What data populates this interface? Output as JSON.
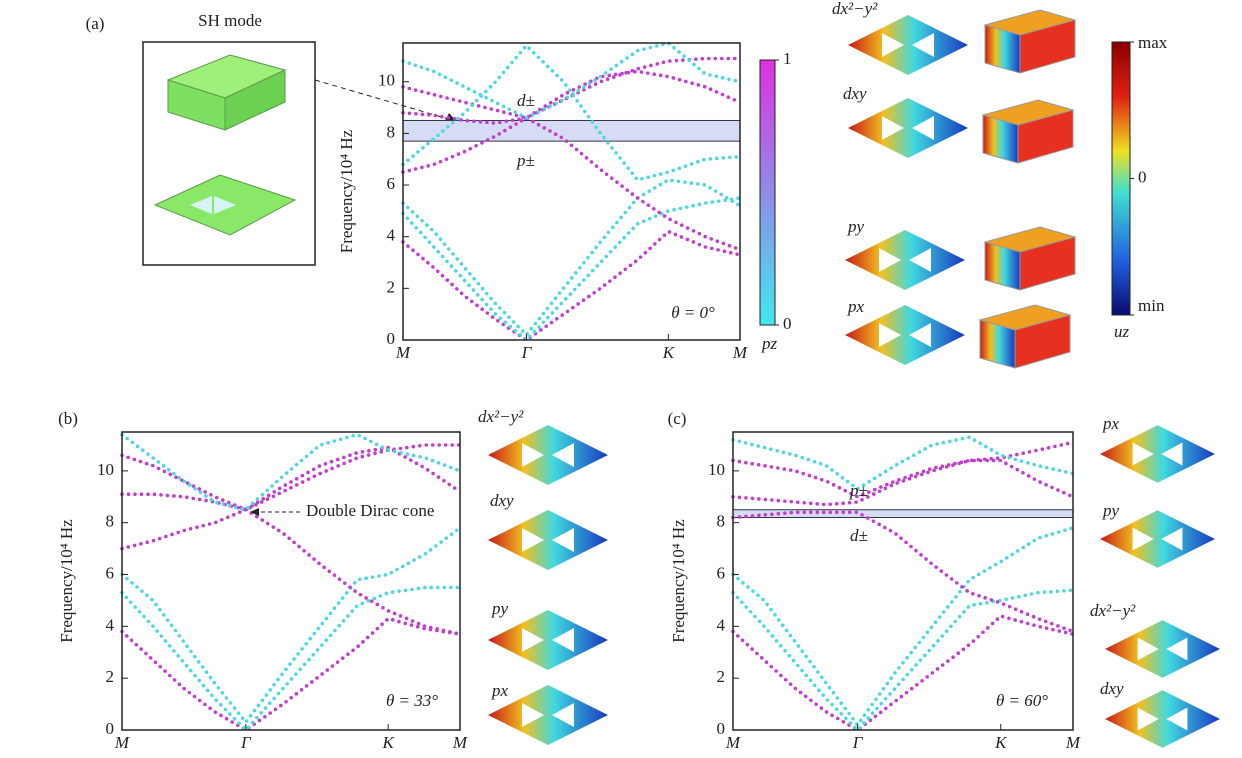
{
  "chart_data": [
    {
      "type": "line",
      "panel": "(a)",
      "ylabel": "Frequency/10⁴ Hz",
      "theta": "θ = 0°",
      "x": [
        0,
        0.25,
        0.5,
        0.75,
        1,
        1.3,
        1.6,
        1.9,
        2.15,
        2.45,
        2.73
      ],
      "xlim": [
        0,
        2.73
      ],
      "xticks": [
        {
          "value": 0,
          "label": "M"
        },
        {
          "value": 1,
          "label": "Γ"
        },
        {
          "value": 2.15,
          "label": "K"
        },
        {
          "value": 2.73,
          "label": "M"
        }
      ],
      "ylim": [
        0,
        11.5
      ],
      "yticks": [
        0,
        2,
        4,
        6,
        8,
        10
      ],
      "band": [
        7.7,
        8.5
      ],
      "band_color": "#d6dcf4",
      "annotations": [
        {
          "text": "d±",
          "color": "#333333"
        },
        {
          "text": "p±",
          "color": "#d03030"
        }
      ],
      "mode_labels": [
        "dx²−y²",
        "dxy",
        "py",
        "px"
      ],
      "colorbar": {
        "label": "pz",
        "lim": [
          0,
          1
        ],
        "ticks": [
          0,
          1
        ],
        "colors": [
          "#40e8f0",
          "#e030e0"
        ]
      },
      "series": [
        {
          "color": "#c23ccf",
          "values": [
            3.8,
            2.8,
            1.7,
            0.8,
            0,
            1.0,
            2.0,
            3.1,
            4.2,
            3.6,
            3.3
          ]
        },
        {
          "color": "#4dd8e0",
          "values": [
            4.9,
            3.6,
            2.3,
            1.0,
            0,
            1.5,
            3.0,
            4.5,
            5.0,
            5.3,
            5.5
          ]
        },
        {
          "color": "#4dd8e0",
          "values": [
            5.3,
            4.2,
            2.8,
            1.4,
            0.2,
            2.0,
            3.8,
            5.5,
            6.2,
            6.0,
            5.2
          ]
        },
        {
          "color": "#c23ccf",
          "values": [
            6.5,
            6.8,
            7.3,
            7.9,
            8.6,
            7.8,
            6.6,
            5.5,
            4.7,
            4.0,
            3.5
          ]
        },
        {
          "color": "#c23ccf",
          "values": [
            8.8,
            8.7,
            8.5,
            8.4,
            8.6,
            9.3,
            10.0,
            10.5,
            10.8,
            10.9,
            10.9
          ]
        },
        {
          "color": "#c23ccf",
          "values": [
            9.8,
            9.5,
            9.2,
            8.9,
            8.6,
            9.5,
            10.2,
            10.4,
            10.2,
            9.8,
            9.2
          ]
        },
        {
          "color": "#4dd8e0",
          "values": [
            6.8,
            7.8,
            8.8,
            10.0,
            11.4,
            10.0,
            8.0,
            6.2,
            6.5,
            7.0,
            7.1
          ]
        },
        {
          "color": "#4dd8e0",
          "values": [
            10.8,
            10.4,
            9.8,
            9.2,
            8.6,
            9.3,
            10.2,
            11.2,
            11.5,
            10.3,
            10.0
          ]
        }
      ]
    },
    {
      "type": "line",
      "panel": "(b)",
      "ylabel": "Frequency/10⁴ Hz",
      "theta": "θ = 33°",
      "x": [
        0,
        0.25,
        0.5,
        0.75,
        1,
        1.3,
        1.6,
        1.9,
        2.15,
        2.45,
        2.73
      ],
      "xlim": [
        0,
        2.73
      ],
      "xticks": [
        {
          "value": 0,
          "label": "M"
        },
        {
          "value": 1,
          "label": "Γ"
        },
        {
          "value": 2.15,
          "label": "K"
        },
        {
          "value": 2.73,
          "label": "M"
        }
      ],
      "ylim": [
        0,
        11.5
      ],
      "yticks": [
        0,
        2,
        4,
        6,
        8,
        10
      ],
      "annotations": [
        {
          "text": "Double Dirac cone",
          "color": "#222222"
        }
      ],
      "mode_labels": [
        "dx²−y²",
        "dxy",
        "py",
        "px"
      ],
      "series": [
        {
          "color": "#c23ccf",
          "values": [
            3.8,
            2.7,
            1.6,
            0.7,
            0,
            1.0,
            2.1,
            3.2,
            4.3,
            3.9,
            3.7
          ]
        },
        {
          "color": "#4dd8e0",
          "values": [
            5.3,
            4.0,
            2.6,
            1.2,
            0,
            1.6,
            3.2,
            4.8,
            5.3,
            5.5,
            5.5
          ]
        },
        {
          "color": "#4dd8e0",
          "values": [
            6.0,
            5.0,
            3.4,
            1.8,
            0.3,
            2.2,
            4.0,
            5.8,
            6.0,
            6.8,
            7.8
          ]
        },
        {
          "color": "#c23ccf",
          "values": [
            7.0,
            7.3,
            7.7,
            8.0,
            8.5,
            7.6,
            6.4,
            5.3,
            4.6,
            4.0,
            3.7
          ]
        },
        {
          "color": "#c23ccf",
          "values": [
            9.1,
            9.1,
            9.0,
            8.8,
            8.5,
            9.2,
            9.9,
            10.5,
            10.8,
            11.0,
            11.0
          ]
        },
        {
          "color": "#c23ccf",
          "values": [
            10.6,
            10.2,
            9.6,
            9.0,
            8.5,
            9.4,
            10.2,
            10.7,
            10.9,
            10.1,
            9.2
          ]
        },
        {
          "color": "#4dd8e0",
          "values": [
            11.4,
            10.5,
            9.6,
            8.8,
            8.5,
            9.8,
            11.0,
            11.4,
            10.8,
            10.5,
            10.0
          ]
        }
      ]
    },
    {
      "type": "line",
      "panel": "(c)",
      "ylabel": "Frequency/10⁴ Hz",
      "theta": "θ = 60°",
      "x": [
        0,
        0.25,
        0.5,
        0.75,
        1,
        1.3,
        1.6,
        1.9,
        2.15,
        2.45,
        2.73
      ],
      "xlim": [
        0,
        2.73
      ],
      "xticks": [
        {
          "value": 0,
          "label": "M"
        },
        {
          "value": 1,
          "label": "Γ"
        },
        {
          "value": 2.15,
          "label": "K"
        },
        {
          "value": 2.73,
          "label": "M"
        }
      ],
      "ylim": [
        0,
        11.5
      ],
      "yticks": [
        0,
        2,
        4,
        6,
        8,
        10
      ],
      "band": [
        8.2,
        8.5
      ],
      "band_color": "#d6dcf4",
      "annotations": [
        {
          "text": "p±",
          "color": "#d03030"
        },
        {
          "text": "d±",
          "color": "#333333"
        }
      ],
      "mode_labels": [
        "px",
        "py",
        "dx²−y²",
        "dxy"
      ],
      "series": [
        {
          "color": "#c23ccf",
          "values": [
            3.8,
            2.7,
            1.6,
            0.7,
            0,
            1.1,
            2.2,
            3.3,
            4.4,
            4.0,
            3.7
          ]
        },
        {
          "color": "#4dd8e0",
          "values": [
            5.3,
            4.0,
            2.6,
            1.2,
            0,
            1.6,
            3.2,
            4.8,
            5.0,
            5.3,
            5.4
          ]
        },
        {
          "color": "#4dd8e0",
          "values": [
            6.0,
            5.0,
            3.4,
            1.8,
            0.2,
            2.2,
            4.0,
            5.8,
            6.5,
            7.4,
            7.8
          ]
        },
        {
          "color": "#c23ccf",
          "values": [
            8.2,
            8.3,
            8.4,
            8.4,
            8.4,
            7.6,
            6.4,
            5.3,
            4.9,
            4.3,
            3.8
          ]
        },
        {
          "color": "#c23ccf",
          "values": [
            9.0,
            8.9,
            8.8,
            8.7,
            8.8,
            9.5,
            10.0,
            10.4,
            10.5,
            10.8,
            11.1
          ]
        },
        {
          "color": "#c23ccf",
          "values": [
            10.4,
            10.2,
            10.0,
            9.6,
            9.0,
            9.6,
            10.1,
            10.4,
            10.4,
            9.6,
            9.0
          ]
        },
        {
          "color": "#4dd8e0",
          "values": [
            11.2,
            10.9,
            10.6,
            10.2,
            9.3,
            10.2,
            11.0,
            11.3,
            10.6,
            10.2,
            9.9
          ]
        }
      ]
    }
  ],
  "field_colorbar": {
    "label": "uz",
    "lim": [
      -1,
      1
    ],
    "ticks": [
      {
        "value": 1,
        "label": "max"
      },
      0,
      {
        "value": -1,
        "label": "min"
      }
    ]
  },
  "inset": {
    "title": "SH mode"
  }
}
